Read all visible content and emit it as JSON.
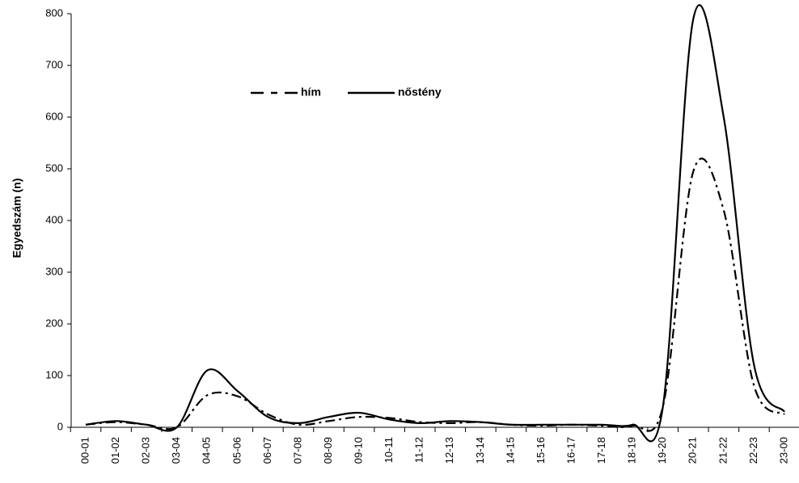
{
  "chart_data": {
    "type": "line",
    "ylabel": "Egyedszám (n)",
    "categories": [
      "00-01",
      "01-02",
      "02-03",
      "03-04",
      "04-05",
      "05-06",
      "06-07",
      "07-08",
      "08-09",
      "09-10",
      "10-11",
      "11-12",
      "12-13",
      "13-14",
      "14-15",
      "15-16",
      "16-17",
      "17-18",
      "18-19",
      "19-20",
      "20-21",
      "21-22",
      "22-23",
      "23-00"
    ],
    "series": [
      {
        "name": "hím",
        "color": "#000000",
        "line_style": "dash-dot",
        "values": [
          5,
          10,
          5,
          0,
          62,
          60,
          25,
          5,
          12,
          20,
          18,
          10,
          8,
          10,
          5,
          3,
          5,
          3,
          3,
          40,
          495,
          420,
          80,
          25
        ]
      },
      {
        "name": "nőstény",
        "color": "#000000",
        "line_style": "solid",
        "values": [
          5,
          12,
          5,
          0,
          110,
          70,
          20,
          8,
          20,
          28,
          15,
          8,
          12,
          10,
          5,
          5,
          5,
          5,
          5,
          40,
          790,
          600,
          120,
          30
        ]
      }
    ],
    "ylim": [
      0,
      800
    ],
    "yticks": [
      0,
      100,
      200,
      300,
      400,
      500,
      600,
      700,
      800
    ],
    "grid": false
  }
}
